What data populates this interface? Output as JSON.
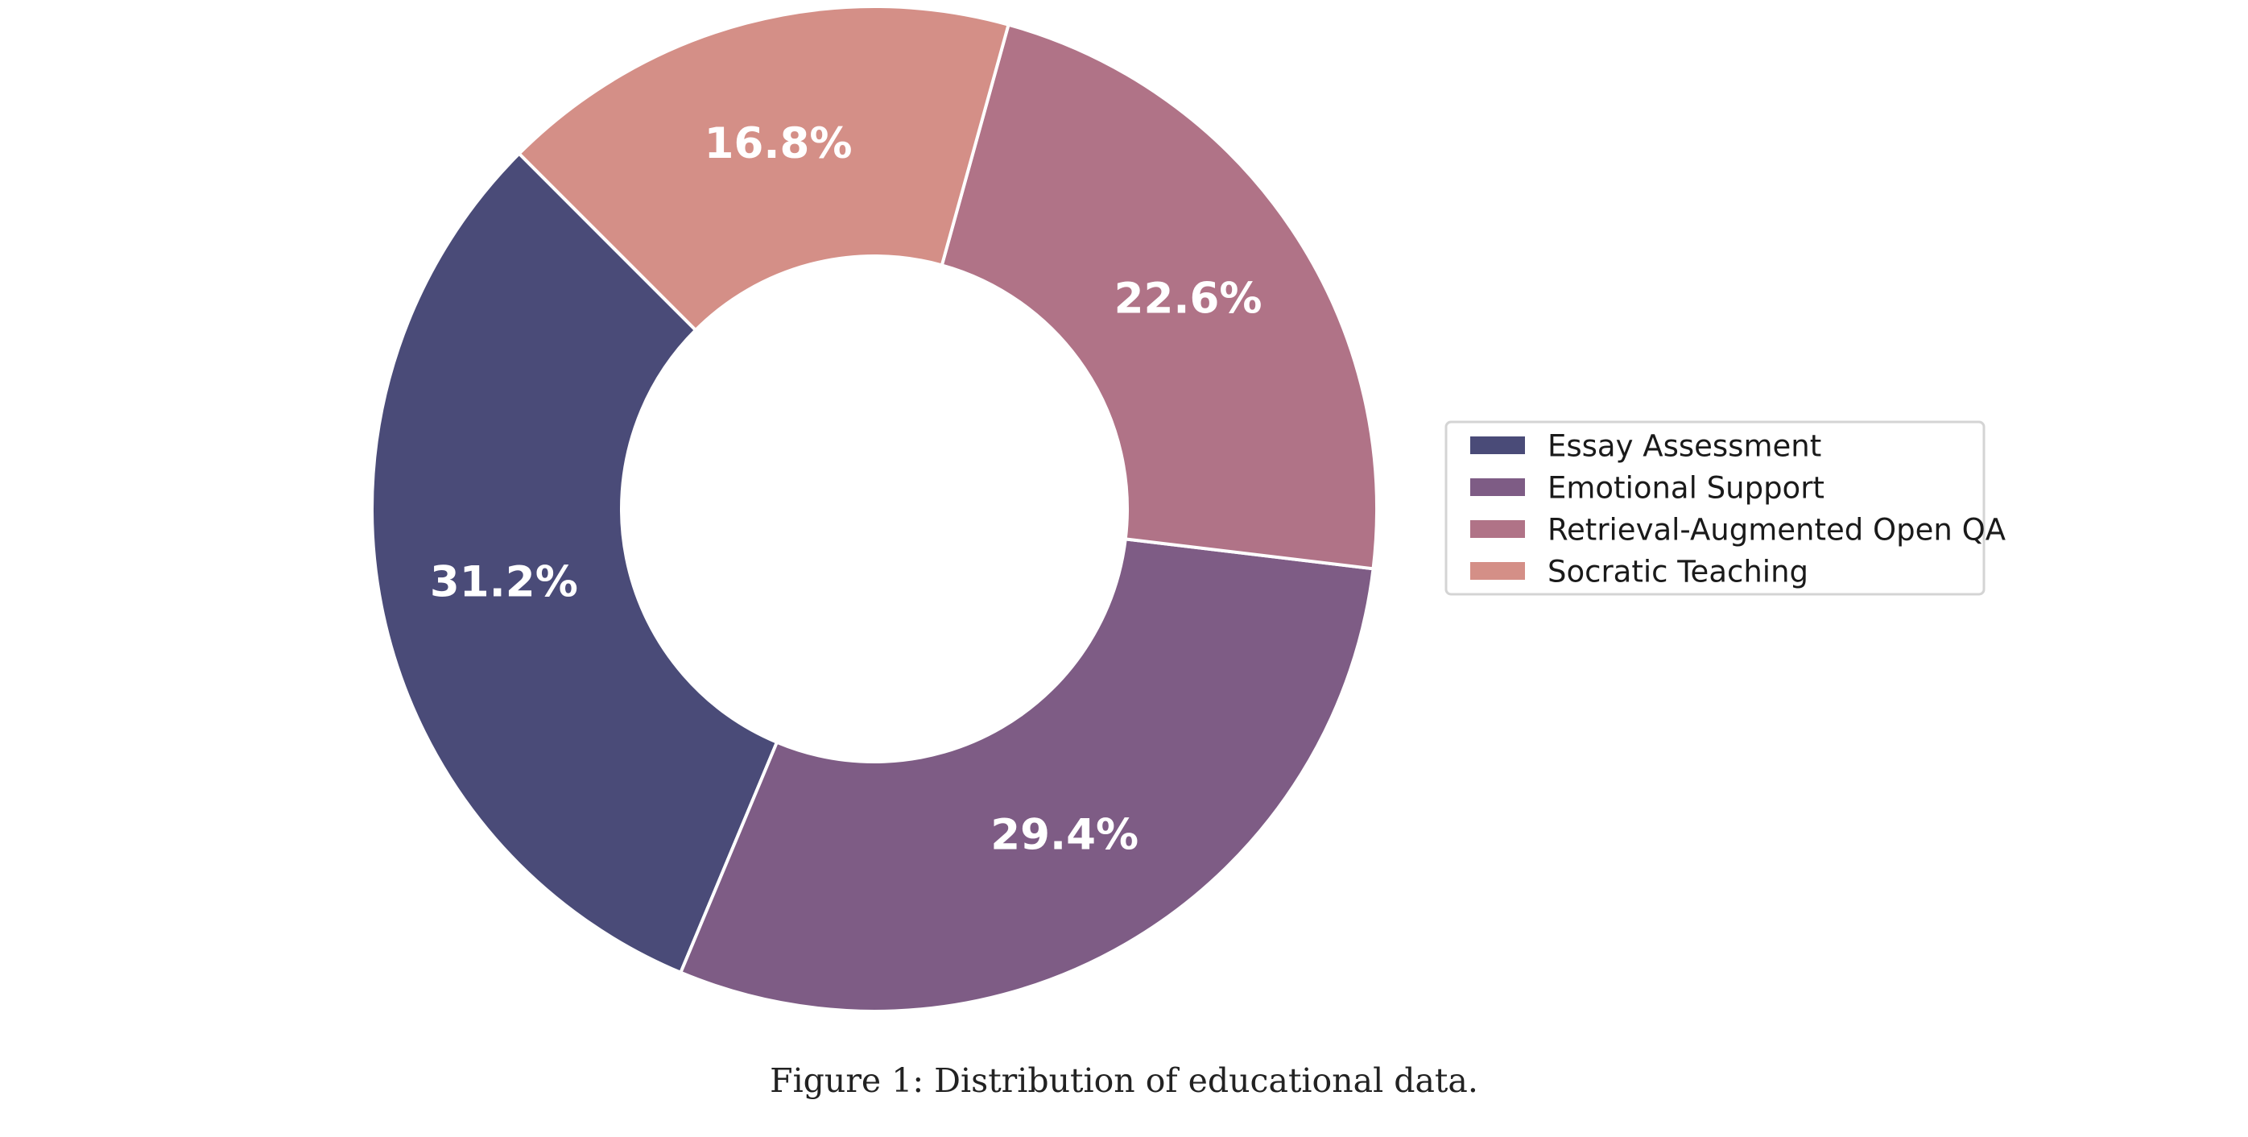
{
  "chart_data": {
    "type": "pie",
    "style": "donut",
    "categories": [
      "Essay Assessment",
      "Emotional Support",
      "Retrieval-Augmented Open QA",
      "Socratic Teaching"
    ],
    "values": [
      31.2,
      29.4,
      22.6,
      16.8
    ],
    "value_labels": [
      "31.2%",
      "29.4%",
      "22.6%",
      "16.8%"
    ],
    "colors": [
      "#4a4b78",
      "#7e5c85",
      "#b07387",
      "#d48f87"
    ],
    "legend_position": "right"
  },
  "caption": "Figure 1: Distribution of educational data."
}
